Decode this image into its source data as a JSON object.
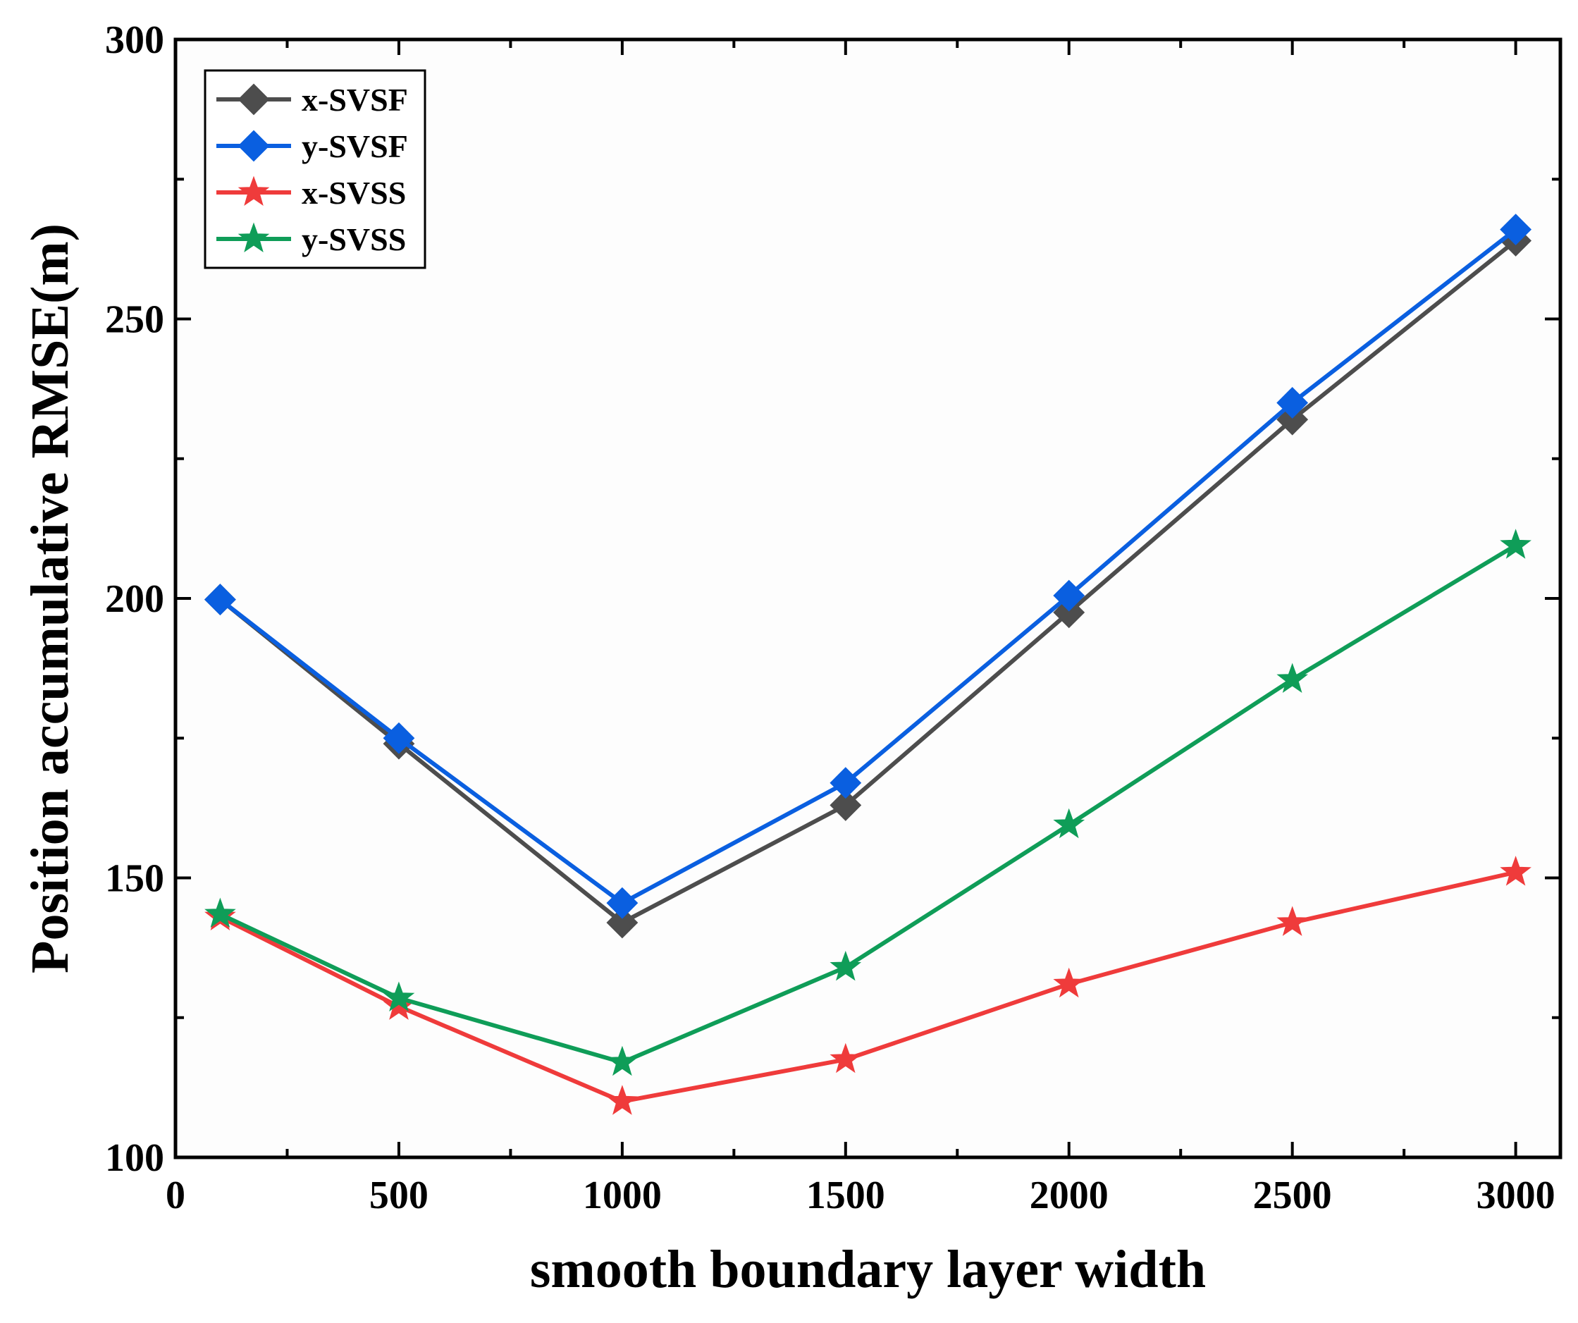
{
  "chart_data": {
    "type": "line",
    "title": "",
    "xlabel": "smooth boundary layer width",
    "ylabel": "Position accumulative RMSE(m)",
    "xlim": [
      0,
      3100
    ],
    "ylim": [
      100,
      300
    ],
    "x_ticks": [
      0,
      500,
      1000,
      1500,
      2000,
      2500,
      3000
    ],
    "y_ticks": [
      100,
      150,
      200,
      250,
      300
    ],
    "x_minor_ticks": [
      250,
      750,
      1250,
      1750,
      2250,
      2750
    ],
    "y_minor_ticks": [
      125,
      175,
      225,
      275
    ],
    "grid": false,
    "legend_position": "top-left",
    "x": [
      100,
      500,
      1000,
      1500,
      2000,
      2500,
      3000
    ],
    "series": [
      {
        "name": "x-SVSF",
        "color": "#4d4d4d",
        "marker": "diamond",
        "values": [
          199.8,
          174,
          142,
          163,
          197.5,
          232,
          264
        ]
      },
      {
        "name": "y-SVSF",
        "color": "#0a5fe0",
        "marker": "diamond",
        "values": [
          199.8,
          175,
          145.5,
          167,
          200.5,
          235,
          266
        ]
      },
      {
        "name": "x-SVSS",
        "color": "#ef3b3b",
        "marker": "star",
        "values": [
          143,
          127,
          110,
          117.5,
          131,
          142,
          151
        ]
      },
      {
        "name": "y-SVSS",
        "color": "#0f9d58",
        "marker": "star",
        "values": [
          143.5,
          128.5,
          117,
          134,
          159.5,
          185.5,
          209.5
        ]
      }
    ]
  }
}
